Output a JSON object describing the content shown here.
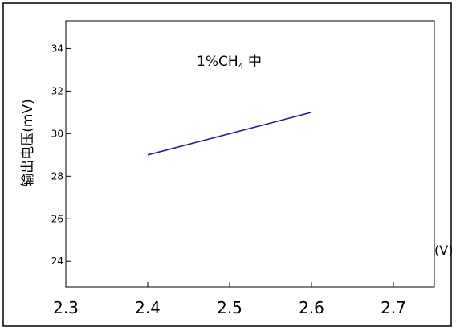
{
  "chart_data": {
    "type": "line",
    "title": "",
    "annotation": {
      "prefix": "1%CH",
      "subscript": "4",
      "suffix": " 中"
    },
    "xlabel": "(V)",
    "ylabel": "输出电压(mV)",
    "xlim": [
      2.3,
      2.75
    ],
    "ylim": [
      22.8,
      35.3
    ],
    "x_ticks": [
      2.3,
      2.4,
      2.5,
      2.6,
      2.7
    ],
    "x_tick_labels": [
      "2.3",
      "2.4",
      "2.5",
      "2.6",
      "2.7"
    ],
    "y_ticks": [
      24,
      26,
      28,
      30,
      32,
      34
    ],
    "y_tick_labels": [
      "24",
      "26",
      "28",
      "30",
      "32",
      "34"
    ],
    "grid": false,
    "series": [
      {
        "x": [
          2.4,
          2.6
        ],
        "y": [
          29.0,
          31.0
        ]
      }
    ],
    "colors": {
      "line": "#1e1e99",
      "axis": "#000000",
      "frame": "#000000"
    }
  }
}
